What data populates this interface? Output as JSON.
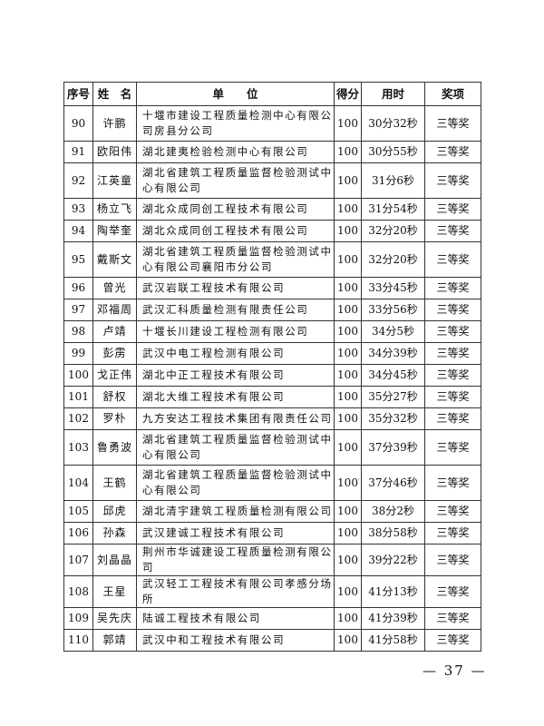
{
  "table": {
    "headers": [
      "序号",
      "姓　名",
      "单　　位",
      "得分",
      "用时",
      "奖项"
    ],
    "rows": [
      {
        "no": "90",
        "name": "许鹏",
        "unit": "十堰市建设工程质量检测中心有限公司房县分公司",
        "score": "100",
        "time": "30分32秒",
        "award": "三等奖"
      },
      {
        "no": "91",
        "name": "欧阳伟",
        "unit": "湖北建夷检验检测中心有限公司",
        "score": "100",
        "time": "30分55秒",
        "award": "三等奖"
      },
      {
        "no": "92",
        "name": "江英童",
        "unit": "湖北省建筑工程质量监督检验测试中心有限公司",
        "score": "100",
        "time": "31分6秒",
        "award": "三等奖"
      },
      {
        "no": "93",
        "name": "杨立飞",
        "unit": "湖北众成同创工程技术有限公司",
        "score": "100",
        "time": "31分54秒",
        "award": "三等奖"
      },
      {
        "no": "94",
        "name": "陶举奎",
        "unit": "湖北众成同创工程技术有限公司",
        "score": "100",
        "time": "32分20秒",
        "award": "三等奖"
      },
      {
        "no": "95",
        "name": "戴斯文",
        "unit": "湖北省建筑工程质量监督检验测试中心有限公司襄阳市分公司",
        "score": "100",
        "time": "32分20秒",
        "award": "三等奖"
      },
      {
        "no": "96",
        "name": "曾光",
        "unit": "武汉岩联工程技术有限公司",
        "score": "100",
        "time": "33分45秒",
        "award": "三等奖"
      },
      {
        "no": "97",
        "name": "邓福周",
        "unit": "武汉汇科质量检测有限责任公司",
        "score": "100",
        "time": "33分56秒",
        "award": "三等奖"
      },
      {
        "no": "98",
        "name": "卢靖",
        "unit": "十堰长川建设工程检测有限公司",
        "score": "100",
        "time": "34分5秒",
        "award": "三等奖"
      },
      {
        "no": "99",
        "name": "彭雳",
        "unit": "武汉中电工程检测有限公司",
        "score": "100",
        "time": "34分39秒",
        "award": "三等奖"
      },
      {
        "no": "100",
        "name": "戈正伟",
        "unit": "湖北中正工程技术有限公司",
        "score": "100",
        "time": "34分45秒",
        "award": "三等奖"
      },
      {
        "no": "101",
        "name": "舒权",
        "unit": "湖北大维工程技术有限公司",
        "score": "100",
        "time": "35分27秒",
        "award": "三等奖"
      },
      {
        "no": "102",
        "name": "罗朴",
        "unit": "九方安达工程技术集团有限责任公司",
        "score": "100",
        "time": "35分32秒",
        "award": "三等奖"
      },
      {
        "no": "103",
        "name": "鲁勇波",
        "unit": "湖北省建筑工程质量监督检验测试中心有限公司",
        "score": "100",
        "time": "37分39秒",
        "award": "三等奖"
      },
      {
        "no": "104",
        "name": "王鹤",
        "unit": "湖北省建筑工程质量监督检验测试中心有限公司",
        "score": "100",
        "time": "37分46秒",
        "award": "三等奖"
      },
      {
        "no": "105",
        "name": "邱虎",
        "unit": "湖北清宇建筑工程质量检测有限公司",
        "score": "100",
        "time": "38分2秒",
        "award": "三等奖"
      },
      {
        "no": "106",
        "name": "孙森",
        "unit": "武汉建诚工程技术有限公司",
        "score": "100",
        "time": "38分58秒",
        "award": "三等奖"
      },
      {
        "no": "107",
        "name": "刘晶晶",
        "unit": "荆州市华诚建设工程质量检测有限公司",
        "score": "100",
        "time": "39分22秒",
        "award": "三等奖"
      },
      {
        "no": "108",
        "name": "王星",
        "unit": "武汉轻工工程技术有限公司孝感分场所",
        "score": "100",
        "time": "41分13秒",
        "award": "三等奖"
      },
      {
        "no": "109",
        "name": "吴先庆",
        "unit": "陆诚工程技术有限公司",
        "score": "100",
        "time": "41分39秒",
        "award": "三等奖"
      },
      {
        "no": "110",
        "name": "郭靖",
        "unit": "武汉中和工程技术有限公司",
        "score": "100",
        "time": "41分58秒",
        "award": "三等奖"
      }
    ]
  },
  "page_number": "— 37 —"
}
